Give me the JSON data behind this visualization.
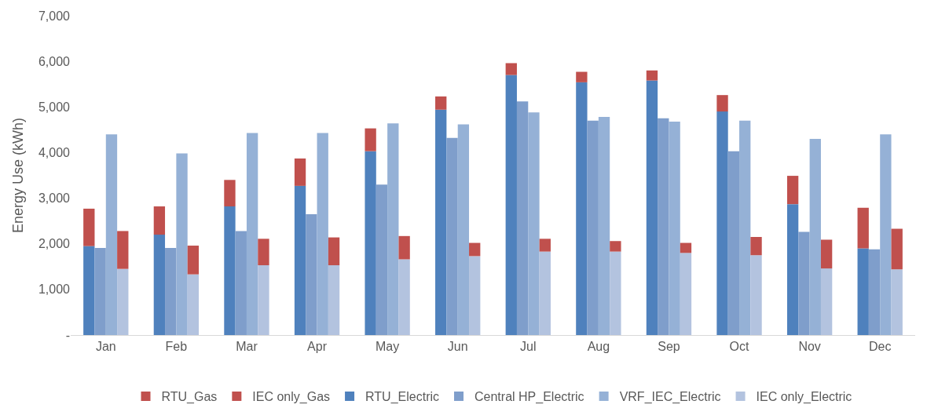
{
  "chart_data": {
    "type": "bar",
    "ylabel": "Energy Use (kWh)",
    "categories": [
      "Jan",
      "Feb",
      "Mar",
      "Apr",
      "May",
      "Jun",
      "Jul",
      "Aug",
      "Sep",
      "Oct",
      "Nov",
      "Dec"
    ],
    "ylim": [
      0,
      7000
    ],
    "yticks": [
      {
        "value": 0,
        "label": "-"
      },
      {
        "value": 1000,
        "label": "1,000"
      },
      {
        "value": 2000,
        "label": "2,000"
      },
      {
        "value": 3000,
        "label": "3,000"
      },
      {
        "value": 4000,
        "label": "4,000"
      },
      {
        "value": 5000,
        "label": "5,000"
      },
      {
        "value": 6000,
        "label": "6,000"
      },
      {
        "value": 7000,
        "label": "7,000"
      }
    ],
    "grid": false,
    "legend": "bottom",
    "series": [
      {
        "name": "RTU_Gas",
        "color": "#c0504d",
        "base": [
          1950,
          2200,
          2820,
          3270,
          4030,
          4940,
          5700,
          5540,
          5580,
          4900,
          2870,
          1900
        ],
        "values": [
          820,
          620,
          580,
          600,
          500,
          290,
          260,
          230,
          220,
          360,
          620,
          890
        ]
      },
      {
        "name": "IEC only_Gas",
        "color": "#c0504d",
        "base": [
          1450,
          1330,
          1530,
          1530,
          1660,
          1730,
          1830,
          1830,
          1800,
          1750,
          1460,
          1440
        ],
        "values": [
          830,
          630,
          580,
          610,
          510,
          290,
          280,
          230,
          220,
          400,
          630,
          890
        ]
      },
      {
        "name": "RTU_Electric",
        "color": "#4f81bd",
        "values": [
          1950,
          2200,
          2820,
          3270,
          4030,
          4940,
          5700,
          5540,
          5580,
          4900,
          2870,
          1900
        ]
      },
      {
        "name": "Central HP_Electric",
        "color": "#7f9ecb",
        "values": [
          1910,
          1910,
          2280,
          2650,
          3300,
          4320,
          5120,
          4700,
          4750,
          4030,
          2260,
          1880
        ]
      },
      {
        "name": "VRF_IEC_Electric",
        "color": "#95b1d6",
        "values": [
          4400,
          3980,
          4430,
          4430,
          4640,
          4620,
          4880,
          4780,
          4680,
          4700,
          4300,
          4400
        ]
      },
      {
        "name": "IEC only_Electric",
        "color": "#b3c3df",
        "values": [
          1450,
          1330,
          1530,
          1530,
          1660,
          1730,
          1830,
          1830,
          1800,
          1750,
          1460,
          1440
        ]
      }
    ]
  }
}
